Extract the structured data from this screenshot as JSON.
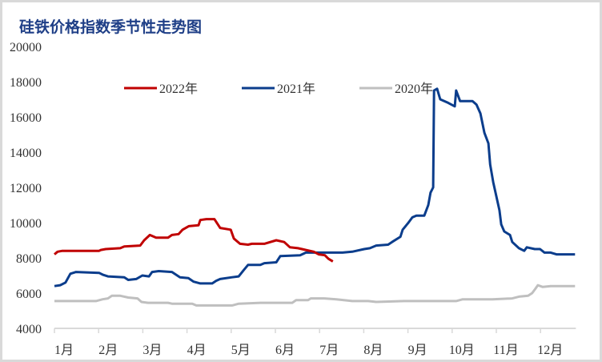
{
  "chart_data": {
    "type": "line",
    "title": "硅铁价格指数季节性走势图",
    "xlabel": "",
    "ylabel": "",
    "ylim": [
      4000,
      20000
    ],
    "yticks": [
      "4000",
      "6000",
      "8000",
      "10000",
      "12000",
      "14000",
      "16000",
      "18000",
      "20000"
    ],
    "ytick_values": [
      4000,
      6000,
      8000,
      10000,
      12000,
      14000,
      16000,
      18000,
      20000
    ],
    "categories": [
      "1月",
      "2月",
      "3月",
      "4月",
      "5月",
      "6月",
      "7月",
      "8月",
      "9月",
      "10月",
      "11月",
      "12月"
    ],
    "x_unit": "months elapsed since Jan 1",
    "xlim": [
      0,
      11.8
    ],
    "grid": false,
    "legend_position": "top-center",
    "series": [
      {
        "name": "2022年",
        "color": "#c00000",
        "points": [
          [
            0,
            8200
          ],
          [
            0.07,
            8350
          ],
          [
            0.18,
            8400
          ],
          [
            0.36,
            8400
          ],
          [
            1.01,
            8400
          ],
          [
            1.05,
            8450
          ],
          [
            1.16,
            8500
          ],
          [
            1.49,
            8550
          ],
          [
            1.58,
            8650
          ],
          [
            1.94,
            8700
          ],
          [
            2.03,
            9000
          ],
          [
            2.16,
            9300
          ],
          [
            2.3,
            9150
          ],
          [
            2.57,
            9150
          ],
          [
            2.66,
            9300
          ],
          [
            2.81,
            9350
          ],
          [
            2.9,
            9600
          ],
          [
            3.04,
            9800
          ],
          [
            3.26,
            9850
          ],
          [
            3.3,
            10150
          ],
          [
            3.44,
            10200
          ],
          [
            3.62,
            10200
          ],
          [
            3.75,
            9700
          ],
          [
            3.99,
            9600
          ],
          [
            4.06,
            9100
          ],
          [
            4.2,
            8800
          ],
          [
            4.38,
            8750
          ],
          [
            4.47,
            8800
          ],
          [
            4.75,
            8800
          ],
          [
            5.02,
            9000
          ],
          [
            5.2,
            8900
          ],
          [
            5.33,
            8600
          ],
          [
            5.51,
            8550
          ],
          [
            5.69,
            8450
          ],
          [
            5.87,
            8350
          ],
          [
            5.98,
            8200
          ],
          [
            6.12,
            8150
          ],
          [
            6.2,
            7950
          ],
          [
            6.3,
            7800
          ]
        ]
      },
      {
        "name": "2021年",
        "color": "#0b3d8c",
        "points": [
          [
            0,
            6400
          ],
          [
            0.13,
            6450
          ],
          [
            0.25,
            6600
          ],
          [
            0.36,
            7100
          ],
          [
            0.49,
            7200
          ],
          [
            1.01,
            7150
          ],
          [
            1.09,
            7050
          ],
          [
            1.21,
            6950
          ],
          [
            1.58,
            6900
          ],
          [
            1.67,
            6750
          ],
          [
            1.85,
            6800
          ],
          [
            1.99,
            7000
          ],
          [
            2.14,
            6950
          ],
          [
            2.21,
            7200
          ],
          [
            2.36,
            7250
          ],
          [
            2.66,
            7200
          ],
          [
            2.84,
            6900
          ],
          [
            3.03,
            6850
          ],
          [
            3.15,
            6650
          ],
          [
            3.3,
            6550
          ],
          [
            3.57,
            6550
          ],
          [
            3.66,
            6700
          ],
          [
            3.75,
            6800
          ],
          [
            4.02,
            6900
          ],
          [
            4.17,
            6950
          ],
          [
            4.28,
            7300
          ],
          [
            4.38,
            7600
          ],
          [
            4.66,
            7600
          ],
          [
            4.75,
            7700
          ],
          [
            5.02,
            7750
          ],
          [
            5.11,
            8100
          ],
          [
            5.56,
            8150
          ],
          [
            5.69,
            8300
          ],
          [
            6.52,
            8300
          ],
          [
            6.74,
            8350
          ],
          [
            7.01,
            8500
          ],
          [
            7.14,
            8550
          ],
          [
            7.28,
            8700
          ],
          [
            7.55,
            8750
          ],
          [
            7.64,
            8900
          ],
          [
            7.83,
            9200
          ],
          [
            7.88,
            9600
          ],
          [
            8.01,
            10000
          ],
          [
            8.1,
            10300
          ],
          [
            8.19,
            10400
          ],
          [
            8.37,
            10400
          ],
          [
            8.46,
            11000
          ],
          [
            8.51,
            11700
          ],
          [
            8.57,
            12000
          ],
          [
            8.59,
            17500
          ],
          [
            8.66,
            17600
          ],
          [
            8.73,
            17000
          ],
          [
            8.91,
            16800
          ],
          [
            9.06,
            16600
          ],
          [
            9.09,
            17500
          ],
          [
            9.18,
            16900
          ],
          [
            9.46,
            16900
          ],
          [
            9.55,
            16700
          ],
          [
            9.64,
            16200
          ],
          [
            9.73,
            15100
          ],
          [
            9.82,
            14500
          ],
          [
            9.86,
            13300
          ],
          [
            9.93,
            12300
          ],
          [
            10.07,
            10700
          ],
          [
            10.11,
            9900
          ],
          [
            10.18,
            9500
          ],
          [
            10.31,
            9300
          ],
          [
            10.36,
            8900
          ],
          [
            10.51,
            8550
          ],
          [
            10.63,
            8400
          ],
          [
            10.69,
            8600
          ],
          [
            10.87,
            8500
          ],
          [
            10.99,
            8500
          ],
          [
            11.09,
            8300
          ],
          [
            11.23,
            8300
          ],
          [
            11.36,
            8200
          ],
          [
            11.78,
            8200
          ]
        ]
      },
      {
        "name": "2020年",
        "color": "#bfbfbf",
        "points": [
          [
            0,
            5550
          ],
          [
            0.94,
            5550
          ],
          [
            1.09,
            5650
          ],
          [
            1.21,
            5700
          ],
          [
            1.3,
            5850
          ],
          [
            1.49,
            5850
          ],
          [
            1.67,
            5750
          ],
          [
            1.88,
            5700
          ],
          [
            1.97,
            5500
          ],
          [
            2.12,
            5450
          ],
          [
            2.57,
            5450
          ],
          [
            2.66,
            5400
          ],
          [
            3.12,
            5400
          ],
          [
            3.21,
            5300
          ],
          [
            4.02,
            5300
          ],
          [
            4.17,
            5400
          ],
          [
            4.66,
            5450
          ],
          [
            5.38,
            5450
          ],
          [
            5.47,
            5600
          ],
          [
            5.74,
            5600
          ],
          [
            5.8,
            5700
          ],
          [
            6.11,
            5700
          ],
          [
            6.38,
            5650
          ],
          [
            6.74,
            5550
          ],
          [
            7.1,
            5550
          ],
          [
            7.28,
            5500
          ],
          [
            7.92,
            5550
          ],
          [
            9.09,
            5550
          ],
          [
            9.24,
            5650
          ],
          [
            9.91,
            5650
          ],
          [
            10.36,
            5700
          ],
          [
            10.51,
            5800
          ],
          [
            10.72,
            5850
          ],
          [
            10.81,
            6000
          ],
          [
            10.87,
            6200
          ],
          [
            10.94,
            6450
          ],
          [
            11.05,
            6350
          ],
          [
            11.23,
            6400
          ],
          [
            11.78,
            6400
          ]
        ]
      }
    ]
  }
}
